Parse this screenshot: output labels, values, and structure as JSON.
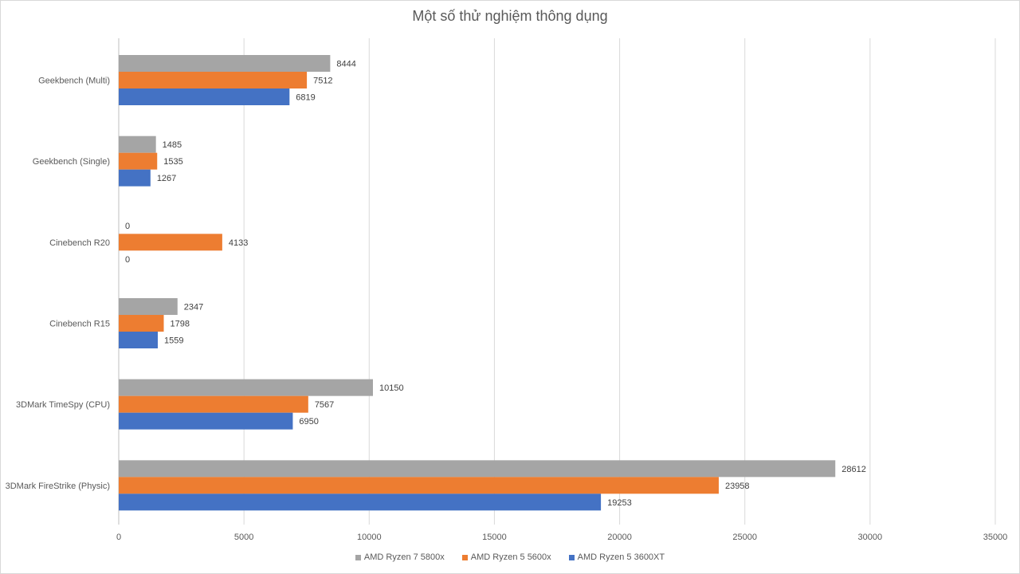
{
  "chart_data": {
    "type": "bar",
    "orientation": "horizontal",
    "title": "Một số thử nghiệm thông dụng",
    "categories": [
      "Geekbench (Multi)",
      "Geekbench (Single)",
      "Cinebench R20",
      "Cinebench R15",
      "3DMark TimeSpy (CPU)",
      "3DMark FireStrike (Physic)"
    ],
    "series": [
      {
        "name": "AMD Ryzen 7 5800x",
        "color": "#a5a5a5",
        "values": [
          8444,
          1485,
          0,
          2347,
          10150,
          28612
        ]
      },
      {
        "name": "AMD Ryzen 5 5600x",
        "color": "#ed7d31",
        "values": [
          7512,
          1535,
          4133,
          1798,
          7567,
          23958
        ]
      },
      {
        "name": "AMD Ryzen 5 3600XT",
        "color": "#4472c4",
        "values": [
          6819,
          1267,
          0,
          1559,
          6950,
          19253
        ]
      }
    ],
    "xlim": [
      0,
      35000
    ],
    "xticks": [
      0,
      5000,
      10000,
      15000,
      20000,
      25000,
      30000,
      35000
    ],
    "grid": "vertical",
    "legend": "bottom",
    "data_labels": true
  }
}
